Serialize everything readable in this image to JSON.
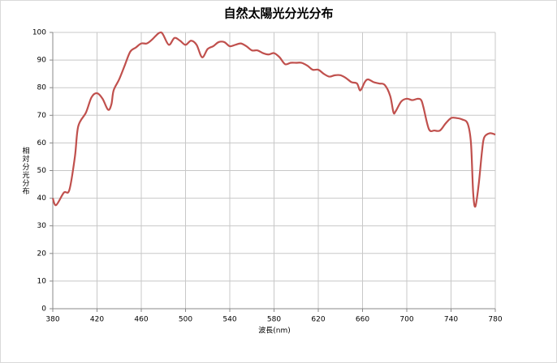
{
  "chart_data": {
    "type": "line",
    "title": "自然太陽光分光分布",
    "x_label": "波長(nm)",
    "y_label": "相対分光分布",
    "x": [
      380,
      383,
      390,
      395,
      400,
      403,
      410,
      415,
      420,
      425,
      430,
      433,
      435,
      440,
      445,
      450,
      455,
      460,
      465,
      470,
      475,
      478,
      480,
      485,
      490,
      495,
      500,
      505,
      510,
      515,
      520,
      525,
      530,
      535,
      540,
      545,
      550,
      555,
      560,
      565,
      570,
      575,
      580,
      585,
      590,
      595,
      600,
      605,
      610,
      615,
      620,
      625,
      630,
      635,
      640,
      645,
      650,
      655,
      658,
      662,
      665,
      670,
      675,
      680,
      685,
      688,
      690,
      695,
      700,
      705,
      710,
      713,
      715,
      720,
      725,
      730,
      735,
      740,
      745,
      750,
      755,
      758,
      760,
      762,
      765,
      768,
      770,
      775,
      780
    ],
    "series": [
      {
        "color": "#c0504d",
        "values": [
          40,
          37.5,
          42,
          43,
          55,
          66,
          71,
          76.5,
          78,
          76,
          72,
          74,
          79,
          83,
          88,
          93,
          94.5,
          96,
          96,
          97.5,
          99.5,
          100,
          99,
          95.5,
          98,
          97,
          95.5,
          97,
          95.5,
          91,
          94,
          95,
          96.5,
          96.5,
          95,
          95.5,
          96,
          95,
          93.5,
          93.5,
          92.5,
          92,
          92.5,
          91,
          88.5,
          89,
          89,
          89,
          88,
          86.5,
          86.5,
          85,
          84,
          84.5,
          84.5,
          83.5,
          82,
          81.5,
          79,
          82,
          83,
          82,
          81.5,
          81,
          77,
          71,
          71.5,
          75,
          76,
          75.5,
          76,
          75.5,
          73,
          65,
          64.5,
          64.5,
          67,
          69,
          69,
          68.5,
          67,
          60,
          42,
          37,
          45,
          57,
          62,
          63.5,
          63
        ]
      }
    ],
    "xlim": [
      380,
      780
    ],
    "xticks": [
      380,
      420,
      460,
      500,
      540,
      580,
      620,
      660,
      700,
      740,
      780
    ],
    "ylim": [
      0,
      100
    ],
    "yticks": [
      0,
      10,
      20,
      30,
      40,
      50,
      60,
      70,
      80,
      90,
      100
    ],
    "grid": true
  }
}
